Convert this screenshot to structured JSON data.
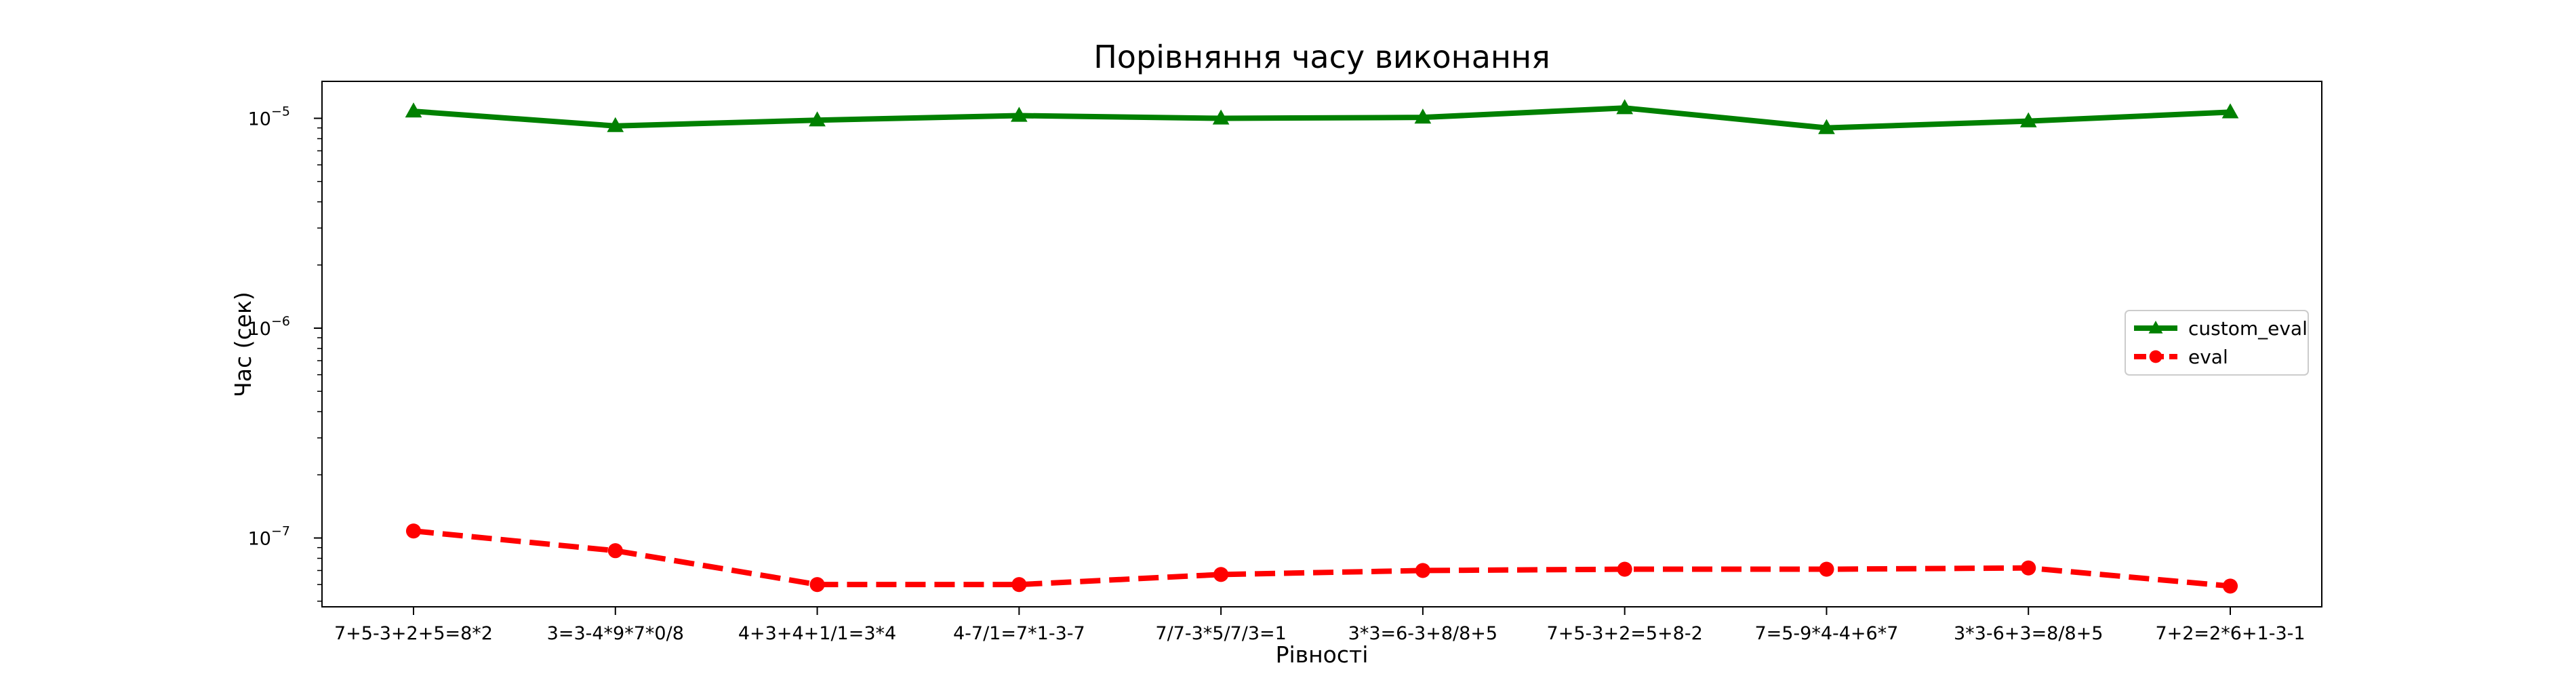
{
  "chart_data": {
    "type": "line",
    "title": "Порівняння часу виконання",
    "xlabel": "Рівності",
    "ylabel": "Час (сек)",
    "yscale": "log",
    "ylim": [
      4.7e-08,
      1.5e-05
    ],
    "grid": false,
    "legend_position": "center-right",
    "categories": [
      "7+5-3+2+5=8*2",
      "3=3-4*9*7*0/8",
      "4+3+4+1/1=3*4",
      "4-7/1=7*1-3-7",
      "7/7-3*5/7/3=1",
      "3*3=6-3+8/8+5",
      "7+5-3+2=5+8-2",
      "7=5-9*4-4+6*7",
      "3*3-6+3=8/8+5",
      "7+2=2*6+1-3-1"
    ],
    "yticks": [
      {
        "value": 1e-05,
        "base": "10",
        "exp": "−5"
      },
      {
        "value": 1e-06,
        "base": "10",
        "exp": "−6"
      },
      {
        "value": 1e-07,
        "base": "10",
        "exp": "−7"
      }
    ],
    "series": [
      {
        "name": "custom_eval",
        "color": "#008000",
        "marker": "triangle",
        "dash": "solid",
        "values": [
          1.08e-05,
          9.2e-06,
          9.8e-06,
          1.03e-05,
          1e-05,
          1.01e-05,
          1.12e-05,
          9e-06,
          9.7e-06,
          1.07e-05
        ]
      },
      {
        "name": "eval",
        "color": "#ff0000",
        "marker": "circle",
        "dash": "dashed",
        "values": [
          1.08e-07,
          8.7e-08,
          6e-08,
          6e-08,
          6.7e-08,
          7e-08,
          7.1e-08,
          7.1e-08,
          7.2e-08,
          5.9e-08
        ]
      }
    ]
  }
}
